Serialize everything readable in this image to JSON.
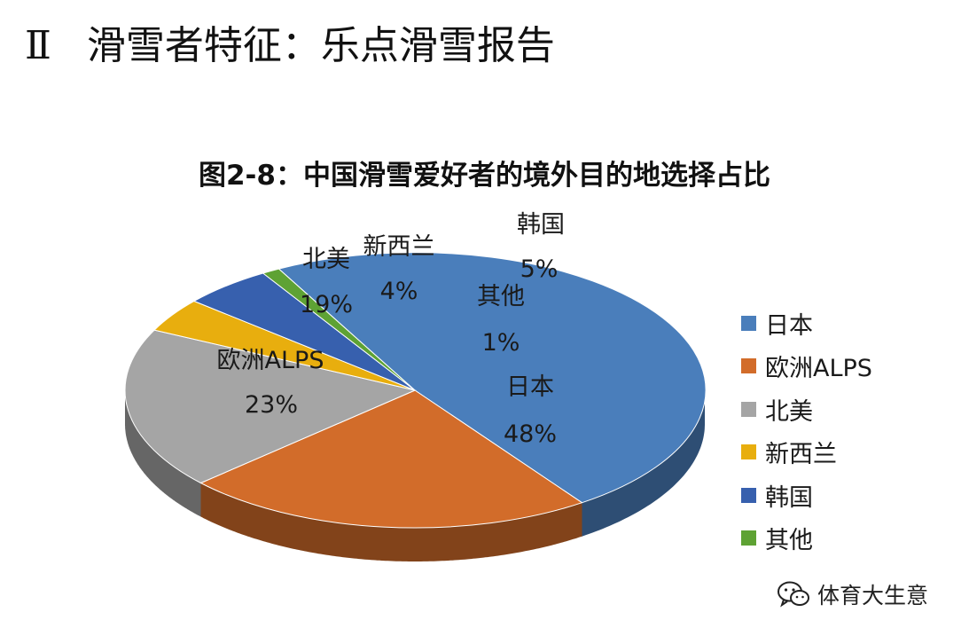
{
  "slide": {
    "numeral": "Ⅱ",
    "title": "滑雪者特征：乐点滑雪报告"
  },
  "chart_data": {
    "type": "pie",
    "title": "图2-8：中国滑雪爱好者的境外目的地选择占比",
    "legend_position": "right",
    "slices": [
      {
        "label": "日本",
        "value": 48,
        "display": "48%",
        "color": "#4A7EBB"
      },
      {
        "label": "欧洲ALPS",
        "value": 23,
        "display": "23%",
        "color": "#D26C2A"
      },
      {
        "label": "北美",
        "value": 19,
        "display": "19%",
        "color": "#A5A5A5"
      },
      {
        "label": "新西兰",
        "value": 4,
        "display": "4%",
        "color": "#E8AE0E"
      },
      {
        "label": "韩国",
        "value": 5,
        "display": "5%",
        "color": "#3760AE"
      },
      {
        "label": "其他",
        "value": 1,
        "display": "1%",
        "color": "#5EA234"
      }
    ]
  },
  "watermark": {
    "icon": "wechat-icon",
    "text": "体育大生意"
  }
}
